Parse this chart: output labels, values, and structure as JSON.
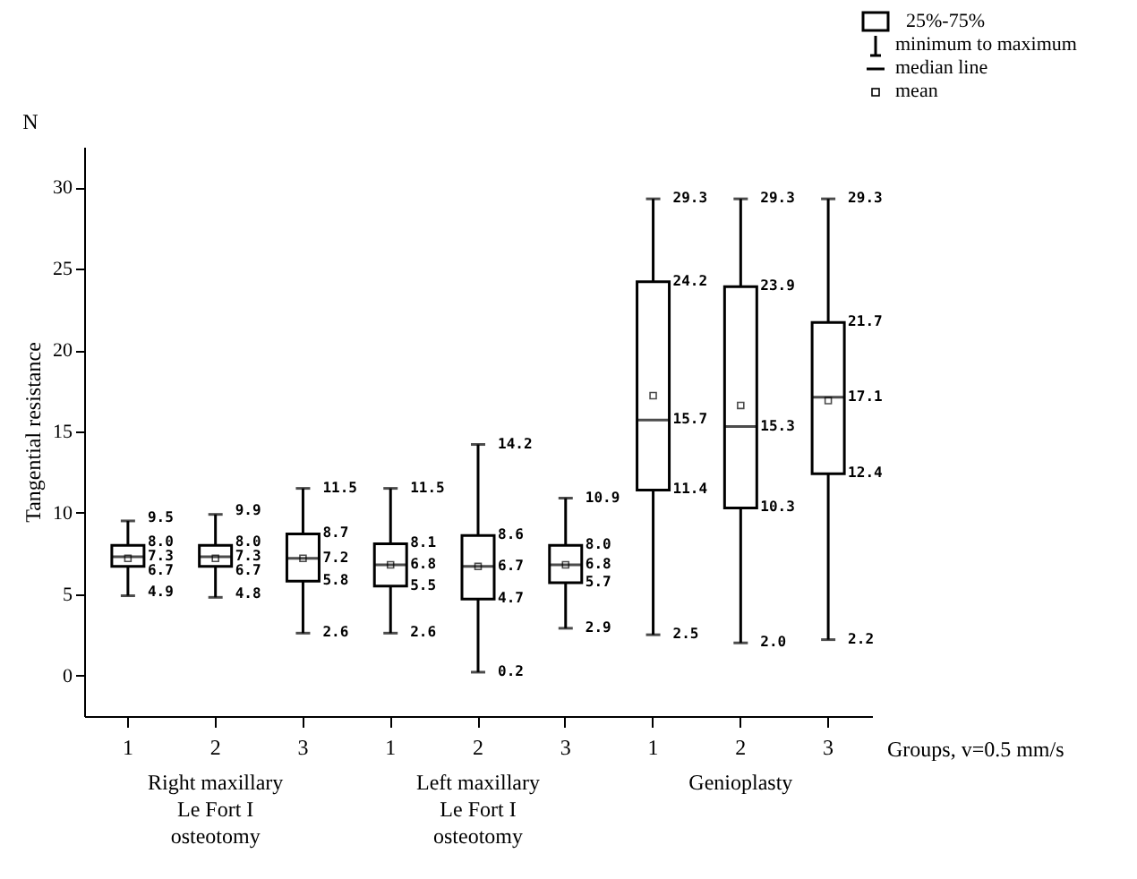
{
  "chart_data": {
    "type": "box",
    "ylabel": "Tangential resistance",
    "xlabel": "Groups, v=0.5 mm/s",
    "categories": [
      "1",
      "2",
      "3",
      "1",
      "2",
      "3",
      "1",
      "2",
      "3"
    ],
    "boxes": [
      {
        "low": 4.9,
        "q1": 6.7,
        "median": 7.3,
        "q3": 8.0,
        "high": 9.5,
        "mean": 7.2
      },
      {
        "low": 4.8,
        "q1": 6.7,
        "median": 7.3,
        "q3": 8.0,
        "high": 9.9,
        "mean": 7.2
      },
      {
        "low": 2.6,
        "q1": 5.8,
        "median": 7.2,
        "q3": 8.7,
        "high": 11.5,
        "mean": 7.2
      },
      {
        "low": 2.6,
        "q1": 5.5,
        "median": 6.8,
        "q3": 8.1,
        "high": 11.5,
        "mean": 6.8
      },
      {
        "low": 0.2,
        "q1": 4.7,
        "median": 6.7,
        "q3": 8.6,
        "high": 14.2,
        "mean": 6.7
      },
      {
        "low": 2.9,
        "q1": 5.7,
        "median": 6.8,
        "q3": 8.0,
        "high": 10.9,
        "mean": 6.8
      },
      {
        "low": 2.5,
        "q1": 11.4,
        "median": 15.7,
        "q3": 24.2,
        "high": 29.3,
        "mean": 17.2
      },
      {
        "low": 2.0,
        "q1": 10.3,
        "median": 15.3,
        "q3": 23.9,
        "high": 29.3,
        "mean": 16.6
      },
      {
        "low": 2.2,
        "q1": 12.4,
        "median": 17.1,
        "q3": 21.7,
        "high": 29.3,
        "mean": 16.9
      }
    ],
    "ylim": [
      -2.5,
      32.5
    ],
    "yticks": [
      0,
      5,
      10,
      15,
      20,
      25,
      30
    ],
    "grid": false,
    "annotations": [
      "N",
      "Right maxillary Le Fort I osteotomy",
      "Left maxillary Le Fort I osteotomy",
      "Genioplasty",
      "25%-75%",
      "minimum to maximum",
      "median line",
      "mean",
      "9.5",
      "8.0",
      "7.3",
      "6.7",
      "4.9",
      "9.9",
      "8.0",
      "7.3",
      "6.7",
      "4.8",
      "11.5",
      "8.7",
      "7.2",
      "5.8",
      "2.6",
      "11.5",
      "8.1",
      "6.8",
      "5.5",
      "2.6",
      "14.2",
      "8.6",
      "6.7",
      "4.7",
      "0.2",
      "10.9",
      "8.0",
      "6.8",
      "5.7",
      "2.9",
      "29.3",
      "24.2",
      "15.7",
      "11.4",
      "2.5",
      "29.3",
      "23.9",
      "15.3",
      "10.3",
      "2.0",
      "29.3",
      "21.7",
      "17.1",
      "12.4",
      "2.2"
    ]
  }
}
